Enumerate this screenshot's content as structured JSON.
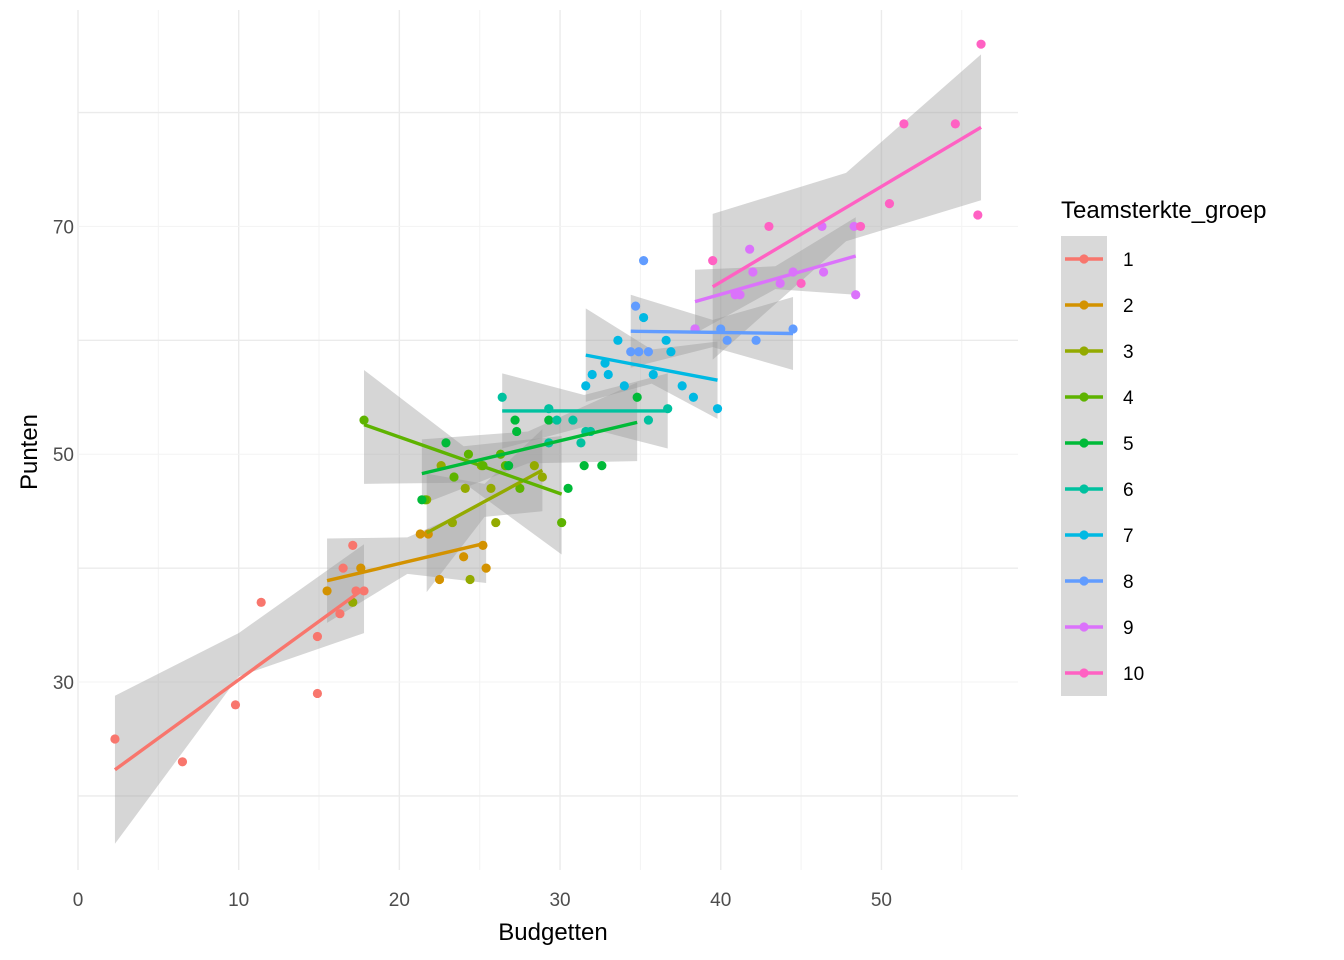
{
  "chart_data": {
    "type": "scatter",
    "xlabel": "Budgetten",
    "ylabel": "Punten",
    "xlim": [
      0,
      58.5
    ],
    "ylim": [
      13.5,
      89
    ],
    "x_ticks": [
      0,
      10,
      20,
      30,
      40,
      50
    ],
    "y_ticks": [
      30,
      50,
      70
    ],
    "grid": true,
    "legend": {
      "title": "Teamsterkte_groep",
      "placement": "right"
    },
    "trend": "linear fit with confidence band per group",
    "band_color": "#999999",
    "series": [
      {
        "name": "1",
        "color": "#F8766D",
        "points": [
          [
            2.3,
            25
          ],
          [
            6.5,
            23
          ],
          [
            9.8,
            28
          ],
          [
            11.4,
            37
          ],
          [
            14.9,
            29
          ],
          [
            14.9,
            34
          ],
          [
            16.3,
            36
          ],
          [
            16.5,
            40
          ],
          [
            17.1,
            42
          ],
          [
            17.3,
            38
          ],
          [
            17.8,
            38
          ]
        ],
        "fit": {
          "x": [
            2.3,
            17.8
          ],
          "y": [
            22.3,
            38.2
          ]
        },
        "band": {
          "x": [
            2.3,
            10,
            17.8
          ],
          "lo": [
            15.8,
            30.5,
            34.3
          ],
          "hi": [
            28.8,
            34.3,
            42.1
          ]
        }
      },
      {
        "name": "2",
        "color": "#D39200",
        "points": [
          [
            15.5,
            38
          ],
          [
            17.6,
            40
          ],
          [
            21.3,
            43
          ],
          [
            21.8,
            43
          ],
          [
            22.5,
            39
          ],
          [
            24.0,
            41
          ],
          [
            25.2,
            42
          ],
          [
            25.4,
            40
          ]
        ],
        "fit": {
          "x": [
            15.5,
            25.4
          ],
          "y": [
            38.9,
            42.2
          ]
        },
        "band": {
          "x": [
            15.5,
            20.5,
            25.4
          ],
          "lo": [
            35.2,
            39.5,
            38.7
          ],
          "hi": [
            42.6,
            42.7,
            45.7
          ]
        }
      },
      {
        "name": "3",
        "color": "#93AA00",
        "points": [
          [
            17.1,
            37
          ],
          [
            21.7,
            46
          ],
          [
            22.6,
            49
          ],
          [
            23.3,
            44
          ],
          [
            24.1,
            47
          ],
          [
            24.4,
            39
          ],
          [
            25.1,
            49
          ],
          [
            25.7,
            47
          ],
          [
            26.0,
            44
          ],
          [
            28.4,
            49
          ],
          [
            28.9,
            48
          ]
        ],
        "fit": {
          "x": [
            21.7,
            28.9
          ],
          "y": [
            43.1,
            48.6
          ]
        },
        "band": {
          "x": [
            21.7,
            25.3,
            28.9
          ],
          "lo": [
            37.9,
            44.5,
            45.0
          ],
          "hi": [
            48.3,
            47.4,
            52.2
          ]
        }
      },
      {
        "name": "4",
        "color": "#5EB300",
        "points": [
          [
            17.8,
            53
          ],
          [
            21.6,
            46
          ],
          [
            23.4,
            48
          ],
          [
            24.3,
            50
          ],
          [
            25.2,
            49
          ],
          [
            26.3,
            50
          ],
          [
            26.6,
            49
          ],
          [
            27.5,
            47
          ],
          [
            30.1,
            44
          ]
        ],
        "fit": {
          "x": [
            17.8,
            30.1
          ],
          "y": [
            52.6,
            46.5
          ]
        },
        "band": {
          "x": [
            17.8,
            24,
            30.1
          ],
          "lo": [
            47.4,
            47.5,
            41.2
          ],
          "hi": [
            57.4,
            50.7,
            51.6
          ]
        }
      },
      {
        "name": "5",
        "color": "#00BA38",
        "points": [
          [
            21.4,
            46
          ],
          [
            22.9,
            51
          ],
          [
            26.8,
            49
          ],
          [
            27.2,
            53
          ],
          [
            27.3,
            52
          ],
          [
            29.3,
            53
          ],
          [
            30.5,
            47
          ],
          [
            31.5,
            49
          ],
          [
            32.6,
            49
          ],
          [
            34.8,
            55
          ]
        ],
        "fit": {
          "x": [
            21.4,
            34.8
          ],
          "y": [
            48.3,
            52.8
          ]
        },
        "band": {
          "x": [
            21.4,
            28,
            34.8
          ],
          "lo": [
            45.6,
            49.2,
            49.4
          ],
          "hi": [
            51.3,
            52.0,
            56.3
          ]
        }
      },
      {
        "name": "6",
        "color": "#00C19F",
        "points": [
          [
            26.4,
            55
          ],
          [
            29.3,
            54
          ],
          [
            29.3,
            51
          ],
          [
            29.8,
            53
          ],
          [
            30.8,
            53
          ],
          [
            31.3,
            51
          ],
          [
            31.6,
            52
          ],
          [
            31.9,
            52
          ],
          [
            35.5,
            53
          ],
          [
            36.7,
            54
          ]
        ],
        "fit": {
          "x": [
            26.4,
            36.7
          ],
          "y": [
            53.8,
            53.8
          ]
        },
        "band": {
          "x": [
            26.4,
            31.5,
            36.7
          ],
          "lo": [
            50.5,
            52.4,
            50.5
          ],
          "hi": [
            57.1,
            55.2,
            57.1
          ]
        }
      },
      {
        "name": "7",
        "color": "#00B9E3",
        "points": [
          [
            31.6,
            56
          ],
          [
            32.0,
            57
          ],
          [
            32.8,
            58
          ],
          [
            33.0,
            57
          ],
          [
            33.6,
            60
          ],
          [
            34.0,
            56
          ],
          [
            35.2,
            62
          ],
          [
            35.8,
            57
          ],
          [
            36.6,
            60
          ],
          [
            36.9,
            59
          ],
          [
            37.6,
            56
          ],
          [
            38.3,
            55
          ],
          [
            39.8,
            54
          ]
        ],
        "fit": {
          "x": [
            31.6,
            39.8
          ],
          "y": [
            58.7,
            56.5
          ]
        },
        "band": {
          "x": [
            31.6,
            35.7,
            39.8
          ],
          "lo": [
            54.6,
            56.2,
            53.1
          ],
          "hi": [
            62.8,
            59.2,
            59.9
          ]
        }
      },
      {
        "name": "8",
        "color": "#619CFF",
        "points": [
          [
            34.4,
            59
          ],
          [
            34.7,
            63
          ],
          [
            34.9,
            59
          ],
          [
            35.2,
            67
          ],
          [
            35.5,
            59
          ],
          [
            38.4,
            61
          ],
          [
            40.0,
            61
          ],
          [
            40.4,
            60
          ],
          [
            42.2,
            60
          ],
          [
            44.5,
            61
          ]
        ],
        "fit": {
          "x": [
            34.4,
            44.5
          ],
          "y": [
            60.8,
            60.6
          ]
        },
        "band": {
          "x": [
            34.4,
            39.5,
            44.5
          ],
          "lo": [
            57.6,
            59.4,
            57.4
          ],
          "hi": [
            64.0,
            61.8,
            63.8
          ]
        }
      },
      {
        "name": "9",
        "color": "#DB72FB",
        "points": [
          [
            38.4,
            61
          ],
          [
            40.9,
            64
          ],
          [
            41.2,
            64
          ],
          [
            41.8,
            68
          ],
          [
            42.0,
            66
          ],
          [
            43.7,
            65
          ],
          [
            44.5,
            66
          ],
          [
            46.3,
            70
          ],
          [
            46.4,
            66
          ],
          [
            48.3,
            70
          ],
          [
            48.4,
            64
          ]
        ],
        "fit": {
          "x": [
            38.4,
            48.4
          ],
          "y": [
            63.4,
            67.4
          ]
        },
        "band": {
          "x": [
            38.4,
            43.4,
            48.4
          ],
          "lo": [
            60.6,
            64.5,
            64.0
          ],
          "hi": [
            66.2,
            66.5,
            70.8
          ]
        }
      },
      {
        "name": "10",
        "color": "#FF61C3",
        "points": [
          [
            39.5,
            67
          ],
          [
            43.0,
            70
          ],
          [
            45.0,
            65
          ],
          [
            48.7,
            70
          ],
          [
            50.5,
            72
          ],
          [
            51.4,
            79
          ],
          [
            54.6,
            79
          ],
          [
            56.0,
            71
          ],
          [
            56.2,
            86
          ]
        ],
        "fit": {
          "x": [
            39.5,
            56.2
          ],
          "y": [
            64.7,
            78.7
          ]
        },
        "band": {
          "x": [
            39.5,
            47.8,
            56.2
          ],
          "lo": [
            58.3,
            68.7,
            72.3
          ],
          "hi": [
            71.1,
            74.7,
            85.1
          ]
        }
      }
    ]
  }
}
